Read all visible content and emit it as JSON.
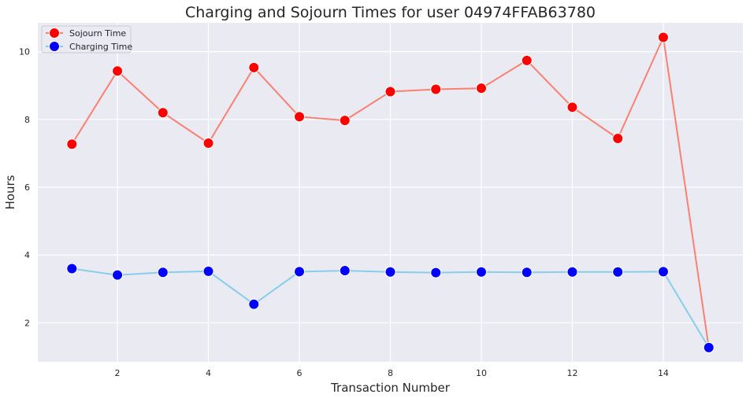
{
  "chart_data": {
    "type": "line",
    "title": "Charging and Sojourn Times for user 04974FFAB63780",
    "xlabel": "Transaction Number",
    "ylabel": "Hours",
    "x": [
      1,
      2,
      3,
      4,
      5,
      6,
      7,
      8,
      9,
      10,
      11,
      12,
      13,
      14,
      15
    ],
    "xlim": [
      0.25,
      15.75
    ],
    "ylim": [
      0.85,
      10.85
    ],
    "xticks": [
      2,
      4,
      6,
      8,
      10,
      12,
      14
    ],
    "yticks": [
      2,
      4,
      6,
      8,
      10
    ],
    "grid": true,
    "legend_position": "top-left",
    "series": [
      {
        "name": "Sojourn Time",
        "line_color": "#fa8072",
        "marker_color": "#ff0000",
        "values": [
          7.27,
          9.43,
          8.2,
          7.3,
          9.53,
          8.08,
          7.97,
          8.82,
          8.89,
          8.92,
          9.74,
          8.36,
          7.44,
          10.42,
          1.27
        ]
      },
      {
        "name": "Charging Time",
        "line_color": "#87ceeb",
        "marker_color": "#0000ff",
        "values": [
          3.6,
          3.41,
          3.49,
          3.52,
          2.55,
          3.51,
          3.54,
          3.5,
          3.48,
          3.5,
          3.49,
          3.5,
          3.5,
          3.51,
          1.27
        ]
      }
    ]
  }
}
